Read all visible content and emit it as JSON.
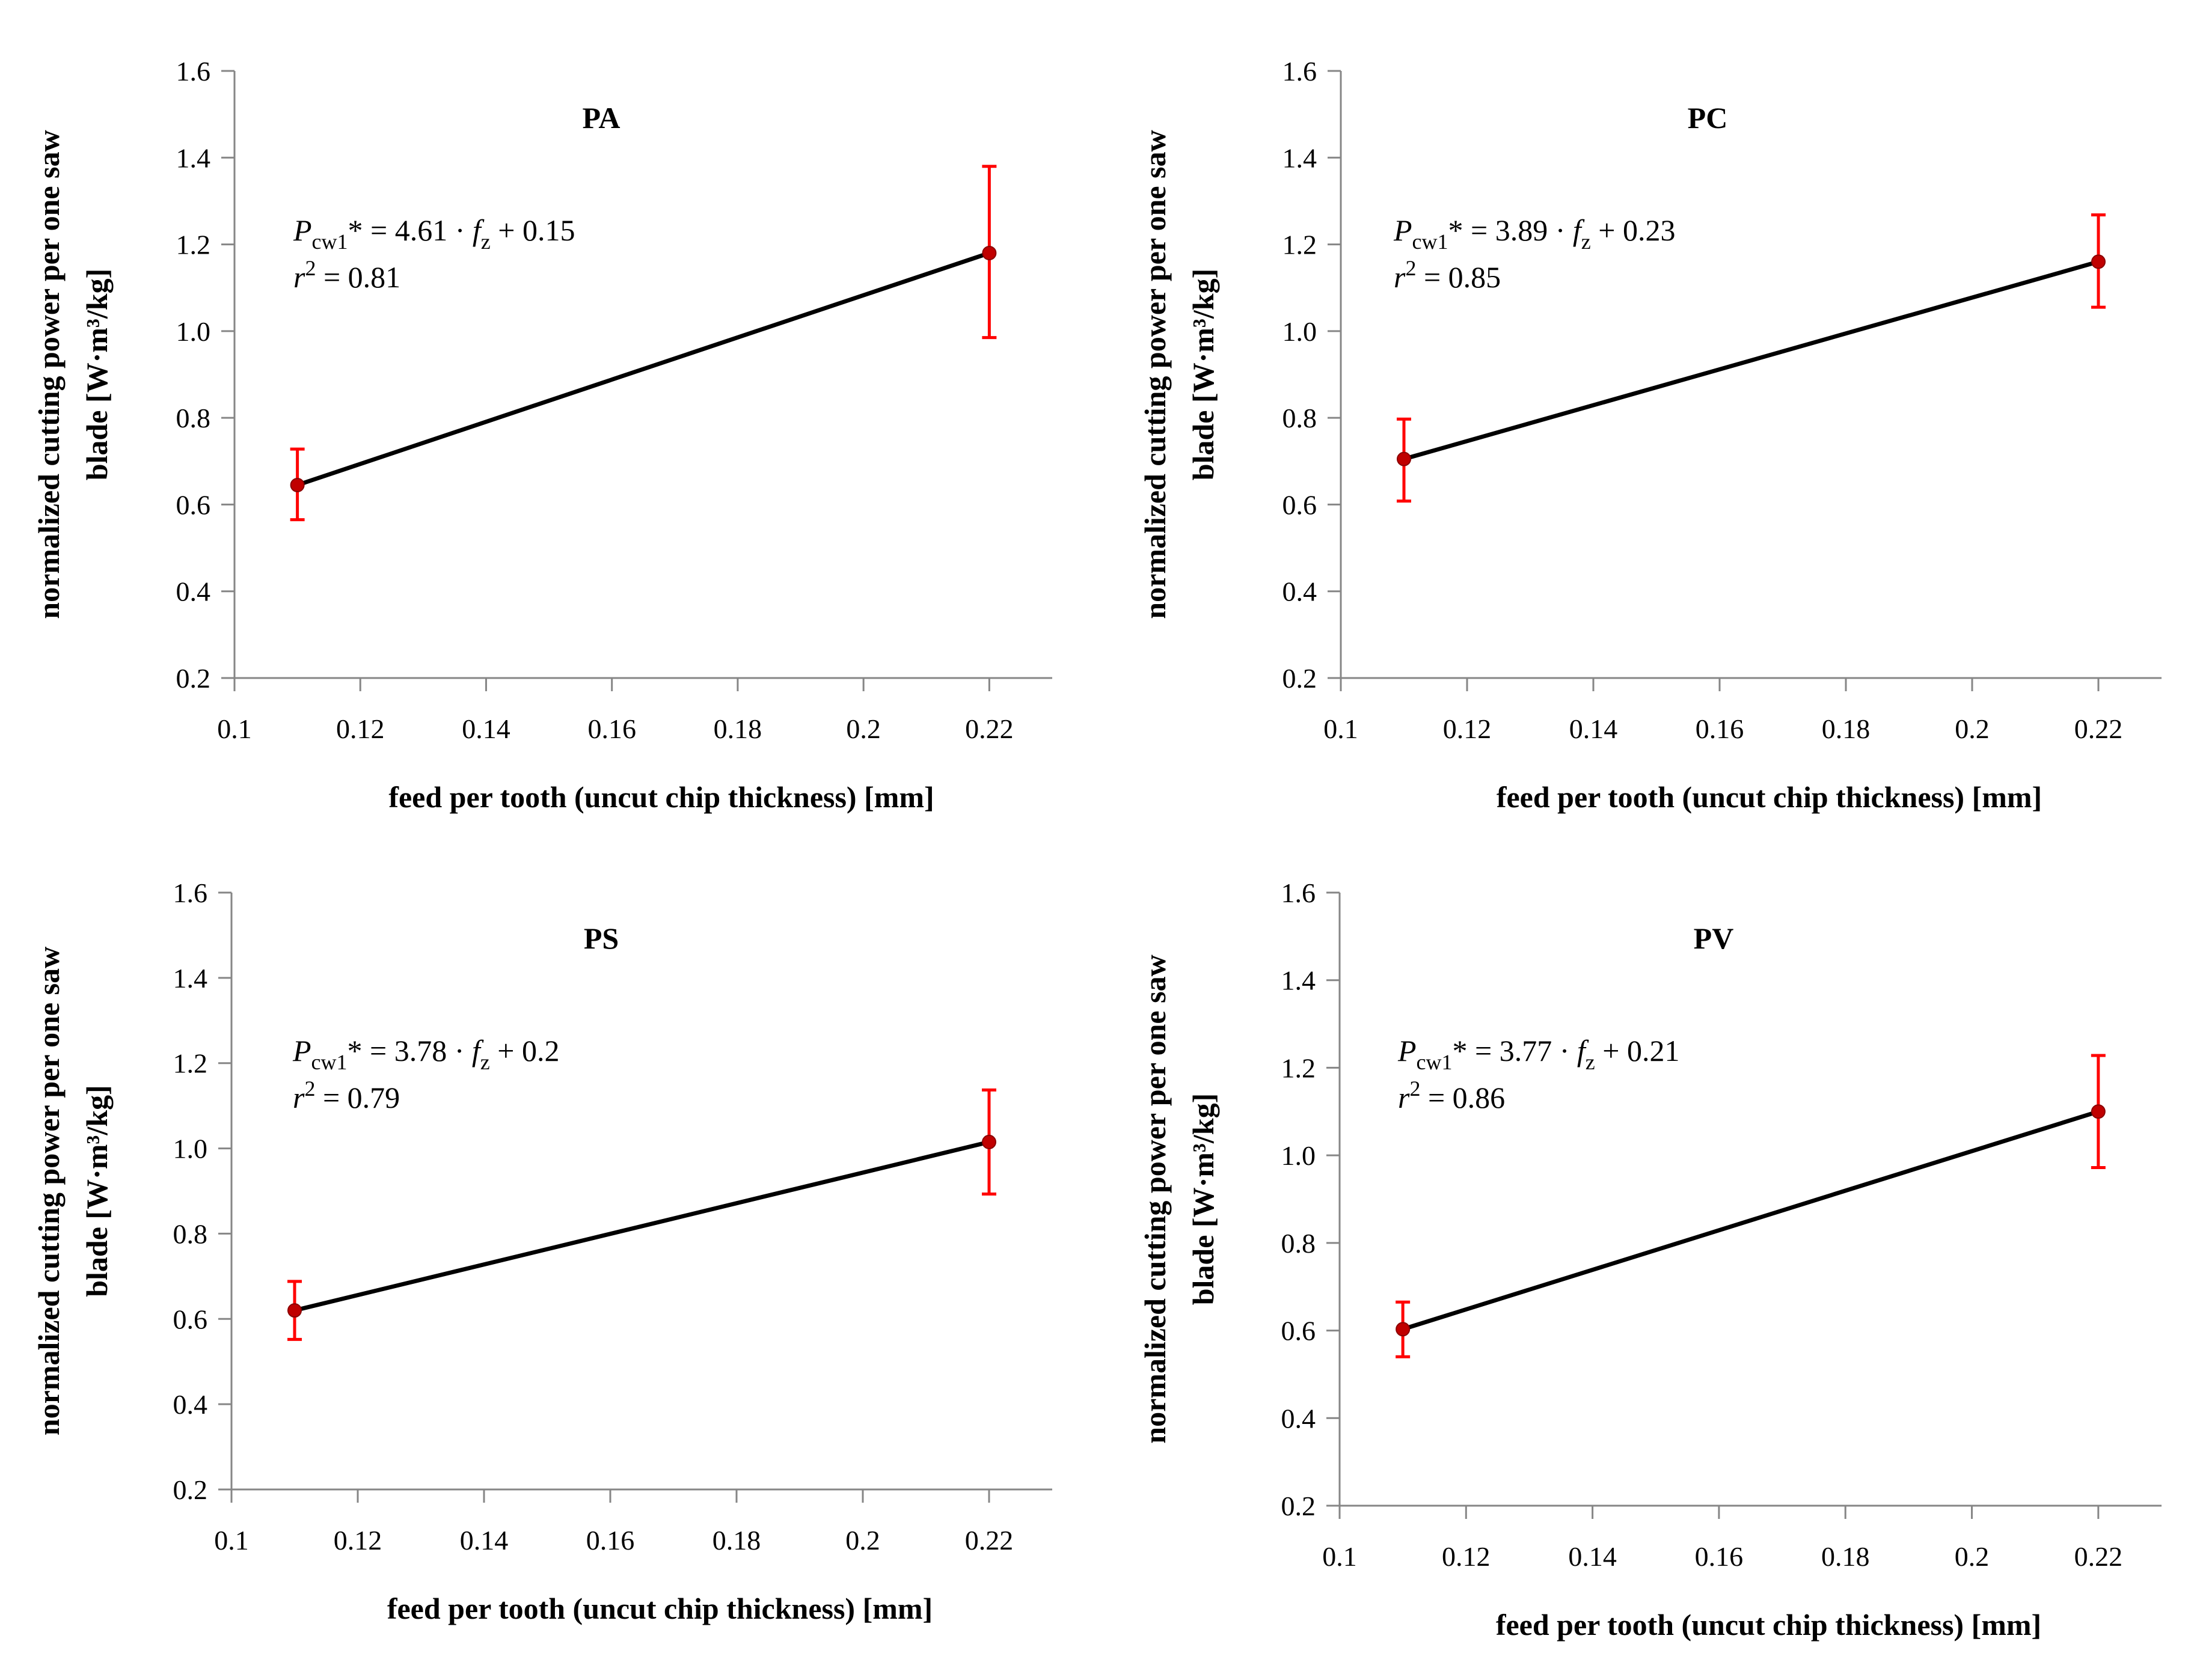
{
  "colors": {
    "trend_line": "#000000",
    "error_bars": "#ff0000",
    "points": "#c00000",
    "axes": "#868686"
  },
  "chart_data": [
    {
      "type": "line",
      "title": "PA",
      "xlabel": "feed per tooth (uncut chip thickness) [mm]",
      "ylabel_line1": "normalized cutting power per one saw",
      "ylabel_line2": "blade [W·m³/kg]",
      "xlim": [
        0.1,
        0.23
      ],
      "ylim": [
        0.2,
        1.6
      ],
      "xticks": [
        "0.1",
        "0.12",
        "0.14",
        "0.16",
        "0.18",
        "0.2",
        "0.22"
      ],
      "yticks": [
        "0.2",
        "0.4",
        "0.6",
        "0.8",
        "1.0",
        "1.2",
        "1.4",
        "1.6"
      ],
      "x": [
        0.11,
        0.22
      ],
      "y": [
        0.645,
        1.18
      ],
      "err_low": [
        0.565,
        0.985
      ],
      "err_high": [
        0.728,
        1.38
      ],
      "equation": {
        "P": "P",
        "sub": "cw1",
        "rest": "* = 4.61 · ",
        "f": "f",
        "fsub": "z",
        "tail": " + 0.15"
      },
      "r2": {
        "r": "r",
        "sup": "2",
        "value": " = 0.81"
      }
    },
    {
      "type": "line",
      "title": "PC",
      "xlabel": "feed per tooth (uncut chip thickness) [mm]",
      "ylabel_line1": "normalized cutting power per one saw",
      "ylabel_line2": "blade [W·m³/kg]",
      "xlim": [
        0.1,
        0.23
      ],
      "ylim": [
        0.2,
        1.6
      ],
      "xticks": [
        "0.1",
        "0.12",
        "0.14",
        "0.16",
        "0.18",
        "0.2",
        "0.22"
      ],
      "yticks": [
        "0.2",
        "0.4",
        "0.6",
        "0.8",
        "1.0",
        "1.2",
        "1.4",
        "1.6"
      ],
      "x": [
        0.11,
        0.22
      ],
      "y": [
        0.705,
        1.16
      ],
      "err_low": [
        0.608,
        1.055
      ],
      "err_high": [
        0.797,
        1.268
      ],
      "equation": {
        "P": "P",
        "sub": "cw1",
        "rest": "* = 3.89 · ",
        "f": "f",
        "fsub": "z",
        "tail": " + 0.23"
      },
      "r2": {
        "r": "r",
        "sup": "2",
        "value": " = 0.85"
      }
    },
    {
      "type": "line",
      "title": "PS",
      "xlabel": "feed per tooth (uncut chip thickness) [mm]",
      "ylabel_line1": "normalized cutting power per one saw",
      "ylabel_line2": "blade [W·m³/kg]",
      "xlim": [
        0.1,
        0.23
      ],
      "ylim": [
        0.2,
        1.6
      ],
      "xticks": [
        "0.1",
        "0.12",
        "0.14",
        "0.16",
        "0.18",
        "0.2",
        "0.22"
      ],
      "yticks": [
        "0.2",
        "0.4",
        "0.6",
        "0.8",
        "1.0",
        "1.2",
        "1.4",
        "1.6"
      ],
      "x": [
        0.11,
        0.22
      ],
      "y": [
        0.62,
        1.015
      ],
      "err_low": [
        0.552,
        0.893
      ],
      "err_high": [
        0.688,
        1.137
      ],
      "equation": {
        "P": "P",
        "sub": "cw1",
        "rest": "* = 3.78 · ",
        "f": "f",
        "fsub": "z",
        "tail": " + 0.2"
      },
      "r2": {
        "r": "r",
        "sup": "2",
        "value": " = 0.79"
      }
    },
    {
      "type": "line",
      "title": "PV",
      "xlabel": "feed per tooth (uncut chip thickness) [mm]",
      "ylabel_line1": "normalized cutting power per one saw",
      "ylabel_line2": "blade [W·m³/kg]",
      "xlim": [
        0.1,
        0.23
      ],
      "ylim": [
        0.2,
        1.6
      ],
      "xticks": [
        "0.1",
        "0.12",
        "0.14",
        "0.16",
        "0.18",
        "0.2",
        "0.22"
      ],
      "yticks": [
        "0.2",
        "0.4",
        "0.6",
        "0.8",
        "1.0",
        "1.2",
        "1.4",
        "1.6"
      ],
      "x": [
        0.11,
        0.22
      ],
      "y": [
        0.603,
        1.1
      ],
      "err_low": [
        0.54,
        0.972
      ],
      "err_high": [
        0.665,
        1.228
      ],
      "equation": {
        "P": "P",
        "sub": "cw1",
        "rest": "* = 3.77 · ",
        "f": "f",
        "fsub": "z",
        "tail": " + 0.21"
      },
      "r2": {
        "r": "r",
        "sup": "2",
        "value": " = 0.86"
      }
    }
  ]
}
